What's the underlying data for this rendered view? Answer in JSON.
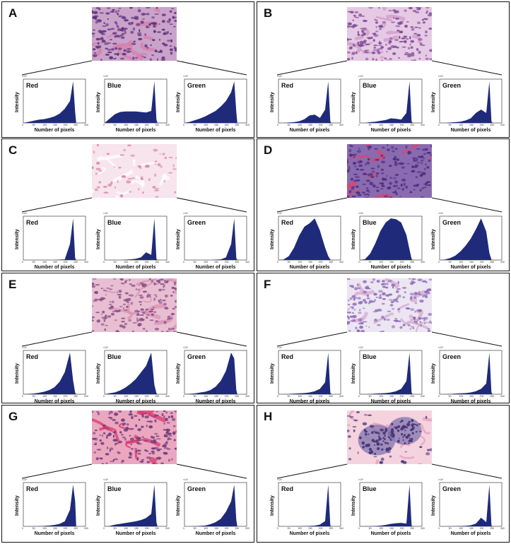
{
  "panels": [
    {
      "letter": "A",
      "tissue": {
        "bg": "#c9a3c9",
        "cell": "#5b2f7a",
        "accent": "#d97aa8",
        "style": "dense"
      }
    },
    {
      "letter": "B",
      "tissue": {
        "bg": "#e6c9e4",
        "cell": "#7d4a96",
        "accent": "#cf97c6",
        "style": "mesh"
      }
    },
    {
      "letter": "C",
      "tissue": {
        "bg": "#f7e4ec",
        "cell": "#d98aa4",
        "accent": "#ffffff",
        "style": "sparse"
      }
    },
    {
      "letter": "D",
      "tissue": {
        "bg": "#8a6bb0",
        "cell": "#4b2d80",
        "accent": "#d8466f",
        "style": "dense"
      }
    },
    {
      "letter": "E",
      "tissue": {
        "bg": "#e8bfd2",
        "cell": "#8a4f86",
        "accent": "#d890b0",
        "style": "fibrous"
      }
    },
    {
      "letter": "F",
      "tissue": {
        "bg": "#ece6f2",
        "cell": "#8e6ab8",
        "accent": "#d3a5cc",
        "style": "mesh"
      }
    },
    {
      "letter": "G",
      "tissue": {
        "bg": "#eaa7bf",
        "cell": "#6d3b7a",
        "accent": "#d8306a",
        "style": "mixed"
      }
    },
    {
      "letter": "H",
      "tissue": {
        "bg": "#f4d3df",
        "cell": "#4a3a7a",
        "accent": "#e49ab6",
        "style": "nests"
      }
    }
  ],
  "channel_labels": [
    "Red",
    "Blue",
    "Green"
  ],
  "axis_labels": {
    "y": "Intensity",
    "x": "Number of pixels"
  },
  "exponent_label": "×10⁴",
  "x_ticks": [
    "0",
    "50",
    "100",
    "150",
    "200",
    "250",
    "300"
  ],
  "colors": {
    "fill": "#1f2a7a",
    "border": "#111111"
  },
  "chart_data": {
    "type": "area",
    "x": [
      0,
      25,
      50,
      75,
      100,
      125,
      150,
      175,
      200,
      225,
      240,
      250,
      255
    ],
    "xlabel": "Number of pixels",
    "ylabel": "Intensity",
    "series": [
      {
        "panel": "A",
        "channel": "Red",
        "values": [
          0,
          0.1,
          0.2,
          0.3,
          0.35,
          0.45,
          0.6,
          0.85,
          1.3,
          2.0,
          3.8,
          1.0,
          0
        ]
      },
      {
        "panel": "A",
        "channel": "Blue",
        "values": [
          0,
          0.4,
          0.8,
          1.0,
          1.05,
          1.05,
          1.05,
          1.0,
          0.95,
          1.1,
          3.8,
          0.3,
          0
        ]
      },
      {
        "panel": "A",
        "channel": "Green",
        "values": [
          0,
          0.1,
          0.25,
          0.4,
          0.6,
          0.85,
          1.1,
          1.5,
          2.0,
          2.8,
          3.8,
          1.0,
          0
        ]
      },
      {
        "panel": "B",
        "channel": "Red",
        "values": [
          0,
          0,
          0.05,
          0.1,
          0.2,
          0.45,
          0.9,
          1.0,
          0.6,
          1.6,
          5.0,
          0.2,
          0
        ]
      },
      {
        "panel": "B",
        "channel": "Blue",
        "values": [
          0,
          0,
          0.1,
          0.15,
          0.25,
          0.35,
          0.55,
          0.5,
          0.4,
          1.2,
          5.0,
          0.2,
          0
        ]
      },
      {
        "panel": "B",
        "channel": "Green",
        "values": [
          0,
          0,
          0.05,
          0.1,
          0.15,
          0.3,
          0.55,
          1.2,
          1.6,
          1.2,
          5.0,
          0.2,
          0
        ]
      },
      {
        "panel": "C",
        "channel": "Red",
        "values": [
          0,
          0,
          0,
          0,
          0,
          0,
          0,
          0.05,
          0.1,
          2.5,
          6.5,
          0.3,
          0
        ]
      },
      {
        "panel": "C",
        "channel": "Blue",
        "values": [
          0,
          0,
          0,
          0,
          0.05,
          0.1,
          0.2,
          0.4,
          1.2,
          0.8,
          6.5,
          0.2,
          0
        ]
      },
      {
        "panel": "C",
        "channel": "Green",
        "values": [
          0,
          0,
          0,
          0,
          0,
          0,
          0.05,
          0.1,
          0.4,
          2.5,
          6.5,
          0.3,
          0
        ]
      },
      {
        "panel": "D",
        "channel": "Red",
        "values": [
          0,
          100,
          800,
          2500,
          5000,
          6800,
          7500,
          8500,
          6000,
          2500,
          800,
          100,
          0
        ]
      },
      {
        "panel": "D",
        "channel": "Blue",
        "values": [
          0,
          200,
          1500,
          4000,
          7000,
          9000,
          10000,
          9800,
          9000,
          6000,
          2500,
          300,
          0
        ]
      },
      {
        "panel": "D",
        "channel": "Green",
        "values": [
          0,
          100,
          400,
          900,
          1800,
          3000,
          4500,
          6500,
          8800,
          6000,
          1500,
          100,
          0
        ]
      },
      {
        "panel": "E",
        "channel": "Red",
        "values": [
          0,
          0.05,
          0.1,
          0.2,
          0.35,
          0.6,
          1.0,
          1.8,
          3.2,
          6.0,
          2.0,
          0.2,
          0
        ]
      },
      {
        "panel": "E",
        "channel": "Blue",
        "values": [
          0,
          0.1,
          0.2,
          0.4,
          0.7,
          1.1,
          1.6,
          2.3,
          3.0,
          4.4,
          1.0,
          0.1,
          0
        ]
      },
      {
        "panel": "E",
        "channel": "Green",
        "values": [
          0,
          0.05,
          0.1,
          0.2,
          0.3,
          0.5,
          0.9,
          1.6,
          2.8,
          5.0,
          4.3,
          0.5,
          0
        ]
      },
      {
        "panel": "F",
        "channel": "Red",
        "values": [
          0,
          0.02,
          0.05,
          0.1,
          0.15,
          0.2,
          0.3,
          0.5,
          0.9,
          2.0,
          7.0,
          0.3,
          0
        ]
      },
      {
        "panel": "F",
        "channel": "Blue",
        "values": [
          0,
          0.02,
          0.05,
          0.1,
          0.15,
          0.2,
          0.3,
          0.5,
          0.9,
          2.2,
          7.0,
          0.3,
          0
        ]
      },
      {
        "panel": "F",
        "channel": "Green",
        "values": [
          0,
          0.02,
          0.05,
          0.1,
          0.15,
          0.2,
          0.3,
          0.5,
          0.9,
          1.8,
          7.0,
          0.3,
          0
        ]
      },
      {
        "panel": "G",
        "channel": "Red",
        "values": [
          0,
          0,
          0.02,
          0.05,
          0.1,
          0.2,
          0.35,
          0.6,
          1.2,
          4.0,
          10.0,
          6.0,
          0
        ]
      },
      {
        "panel": "G",
        "channel": "Blue",
        "values": [
          0,
          0.1,
          0.4,
          0.6,
          0.8,
          1.0,
          1.2,
          1.5,
          2.0,
          3.0,
          10.0,
          1.0,
          0
        ]
      },
      {
        "panel": "G",
        "channel": "Green",
        "values": [
          0,
          0,
          0.05,
          0.1,
          0.2,
          0.5,
          1.0,
          1.8,
          3.5,
          6.0,
          10.0,
          1.5,
          0
        ]
      },
      {
        "panel": "H",
        "channel": "Red",
        "values": [
          0,
          0,
          0,
          0.02,
          0.05,
          0.08,
          0.12,
          0.2,
          0.5,
          1.5,
          12.0,
          0.3,
          0
        ]
      },
      {
        "panel": "H",
        "channel": "Blue",
        "values": [
          0,
          0.02,
          0.05,
          0.1,
          0.2,
          0.4,
          0.7,
          0.9,
          1.0,
          0.8,
          12.0,
          0.3,
          0
        ]
      },
      {
        "panel": "H",
        "channel": "Green",
        "values": [
          0,
          0,
          0.02,
          0.05,
          0.1,
          0.15,
          0.3,
          0.8,
          2.5,
          1.2,
          12.0,
          0.3,
          0
        ]
      }
    ]
  }
}
